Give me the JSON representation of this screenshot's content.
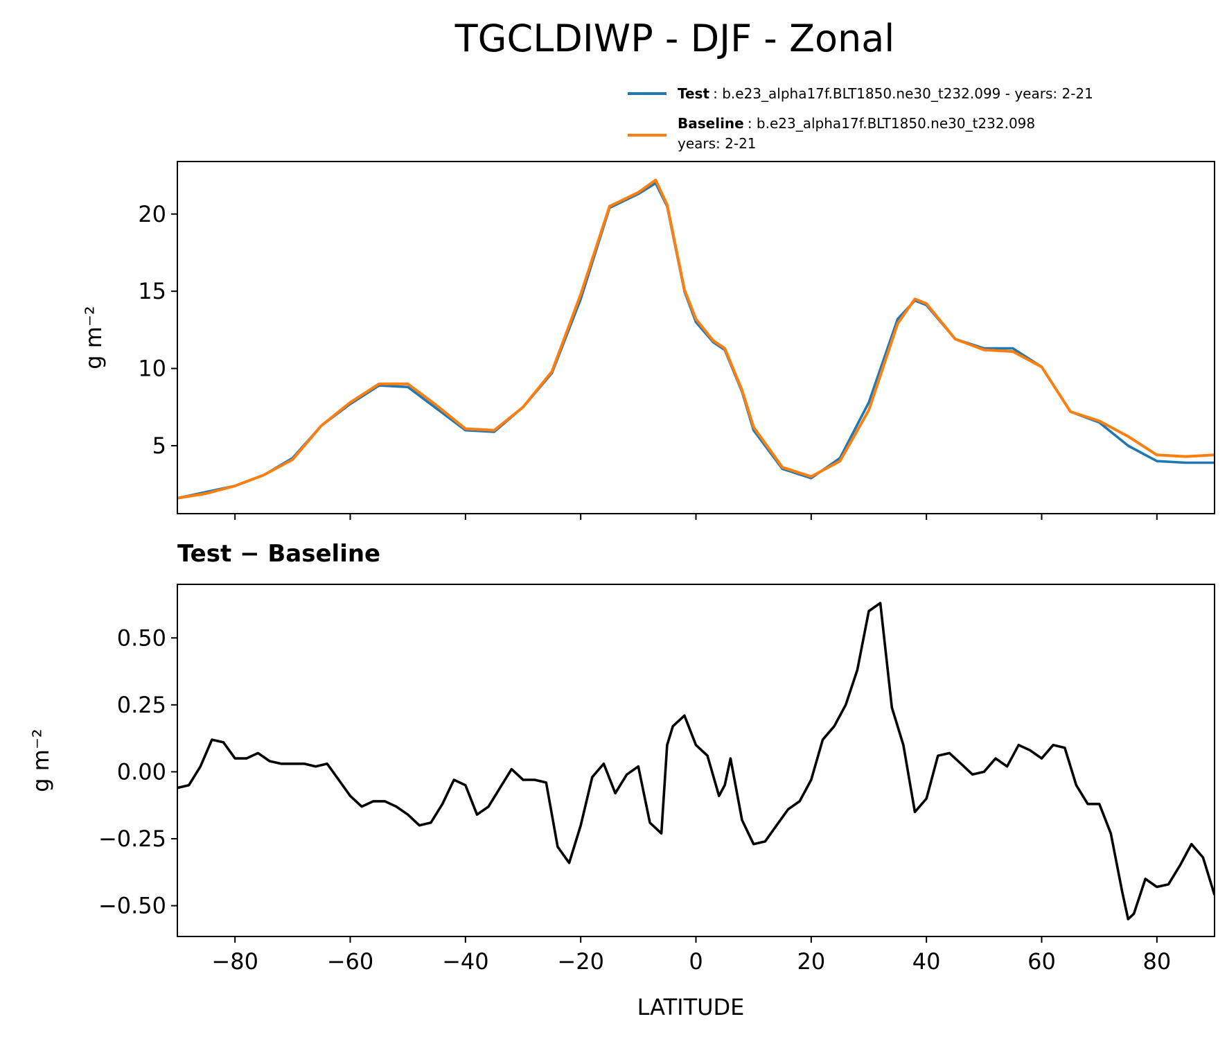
{
  "title": "TGCLDIWP - DJF - Zonal",
  "legend": {
    "test_key": "Test",
    "test_text": ": b.e23_alpha17f.BLT1850.ne30_t232.099 - years: 2-21",
    "baseline_key": "Baseline",
    "baseline_text": ": b.e23_alpha17f.BLT1850.ne30_t232.098",
    "baseline_years": "years: 2-21"
  },
  "colors": {
    "test": "#1f77b4",
    "baseline": "#ff7f0e",
    "diff": "#000000"
  },
  "chart_data": [
    {
      "type": "line",
      "panel": "top",
      "ylabel": "g m⁻²",
      "xlim": [
        -90,
        90
      ],
      "ylim": [
        0.6,
        23.4
      ],
      "yticks": [
        5,
        10,
        15,
        20
      ],
      "ytick_labels": [
        "5",
        "10",
        "15",
        "20"
      ],
      "x": [
        -90,
        -85,
        -80,
        -75,
        -70,
        -65,
        -60,
        -55,
        -50,
        -45,
        -40,
        -35,
        -30,
        -25,
        -20,
        -15,
        -10,
        -7,
        -5,
        -2,
        0,
        3,
        5,
        8,
        10,
        15,
        20,
        25,
        30,
        35,
        38,
        40,
        45,
        50,
        55,
        60,
        65,
        70,
        75,
        80,
        85,
        90
      ],
      "series": [
        {
          "name": "Test",
          "values": [
            1.6,
            2.0,
            2.4,
            3.1,
            4.2,
            6.3,
            7.7,
            8.9,
            8.8,
            7.4,
            6.0,
            5.9,
            7.5,
            9.7,
            14.5,
            20.4,
            21.3,
            22.0,
            20.5,
            15.0,
            13.0,
            11.7,
            11.2,
            8.5,
            6.0,
            3.5,
            2.9,
            4.2,
            7.8,
            13.2,
            14.4,
            14.1,
            11.9,
            11.3,
            11.3,
            10.1,
            7.2,
            6.5,
            5.0,
            4.0,
            3.9,
            3.9
          ]
        },
        {
          "name": "Baseline",
          "values": [
            1.6,
            1.9,
            2.4,
            3.1,
            4.1,
            6.3,
            7.8,
            9.0,
            9.0,
            7.6,
            6.1,
            6.0,
            7.5,
            9.8,
            14.8,
            20.5,
            21.4,
            22.2,
            20.6,
            15.1,
            13.2,
            11.8,
            11.3,
            8.6,
            6.2,
            3.6,
            3.0,
            4.0,
            7.3,
            12.9,
            14.5,
            14.2,
            11.9,
            11.2,
            11.1,
            10.1,
            7.2,
            6.6,
            5.6,
            4.4,
            4.3,
            4.4
          ]
        }
      ]
    },
    {
      "type": "line",
      "panel": "bottom",
      "title": "Test − Baseline",
      "xlabel": "LATITUDE",
      "ylabel": "g m⁻²",
      "xlim": [
        -90,
        90
      ],
      "ylim": [
        -0.615,
        0.7
      ],
      "xticks": [
        -80,
        -60,
        -40,
        -20,
        0,
        20,
        40,
        60,
        80
      ],
      "xtick_labels": [
        "−80",
        "−60",
        "−40",
        "−20",
        "0",
        "20",
        "40",
        "60",
        "80"
      ],
      "yticks": [
        0.5,
        0.25,
        0,
        -0.25,
        -0.5
      ],
      "ytick_labels": [
        "0.50",
        "0.25",
        "0.00",
        "−0.25",
        "−0.50"
      ],
      "series": [
        {
          "name": "Test − Baseline",
          "x": [
            -90,
            -88,
            -86,
            -84,
            -82,
            -80,
            -78,
            -76,
            -74,
            -72,
            -70,
            -68,
            -66,
            -64,
            -62,
            -60,
            -58,
            -56,
            -54,
            -52,
            -50,
            -48,
            -46,
            -44,
            -42,
            -40,
            -38,
            -36,
            -34,
            -32,
            -30,
            -28,
            -26,
            -24,
            -22,
            -20,
            -18,
            -16,
            -14,
            -12,
            -10,
            -8,
            -6,
            -5,
            -4,
            -2,
            0,
            2,
            4,
            5,
            6,
            8,
            10,
            12,
            14,
            16,
            18,
            20,
            22,
            24,
            26,
            28,
            30,
            32,
            34,
            36,
            38,
            40,
            42,
            44,
            46,
            48,
            50,
            52,
            54,
            56,
            58,
            60,
            62,
            64,
            66,
            68,
            70,
            72,
            74,
            75,
            76,
            78,
            80,
            82,
            84,
            86,
            88,
            90
          ],
          "values": [
            -0.06,
            -0.05,
            0.02,
            0.12,
            0.11,
            0.05,
            0.05,
            0.07,
            0.04,
            0.03,
            0.03,
            0.03,
            0.02,
            0.03,
            -0.03,
            -0.09,
            -0.13,
            -0.11,
            -0.11,
            -0.13,
            -0.16,
            -0.2,
            -0.19,
            -0.12,
            -0.03,
            -0.05,
            -0.16,
            -0.13,
            -0.06,
            0.01,
            -0.03,
            -0.03,
            -0.04,
            -0.28,
            -0.34,
            -0.2,
            -0.02,
            0.03,
            -0.08,
            -0.01,
            0.02,
            -0.19,
            -0.23,
            0.1,
            0.17,
            0.21,
            0.1,
            0.06,
            -0.09,
            -0.05,
            0.05,
            -0.18,
            -0.27,
            -0.26,
            -0.2,
            -0.14,
            -0.11,
            -0.03,
            0.12,
            0.17,
            0.25,
            0.38,
            0.6,
            0.63,
            0.24,
            0.1,
            -0.15,
            -0.1,
            0.06,
            0.07,
            0.03,
            -0.01,
            0.0,
            0.05,
            0.02,
            0.1,
            0.08,
            0.05,
            0.1,
            0.09,
            -0.05,
            -0.12,
            -0.12,
            -0.23,
            -0.45,
            -0.55,
            -0.53,
            -0.4,
            -0.43,
            -0.42,
            -0.35,
            -0.27,
            -0.32,
            -0.46
          ]
        }
      ]
    }
  ]
}
